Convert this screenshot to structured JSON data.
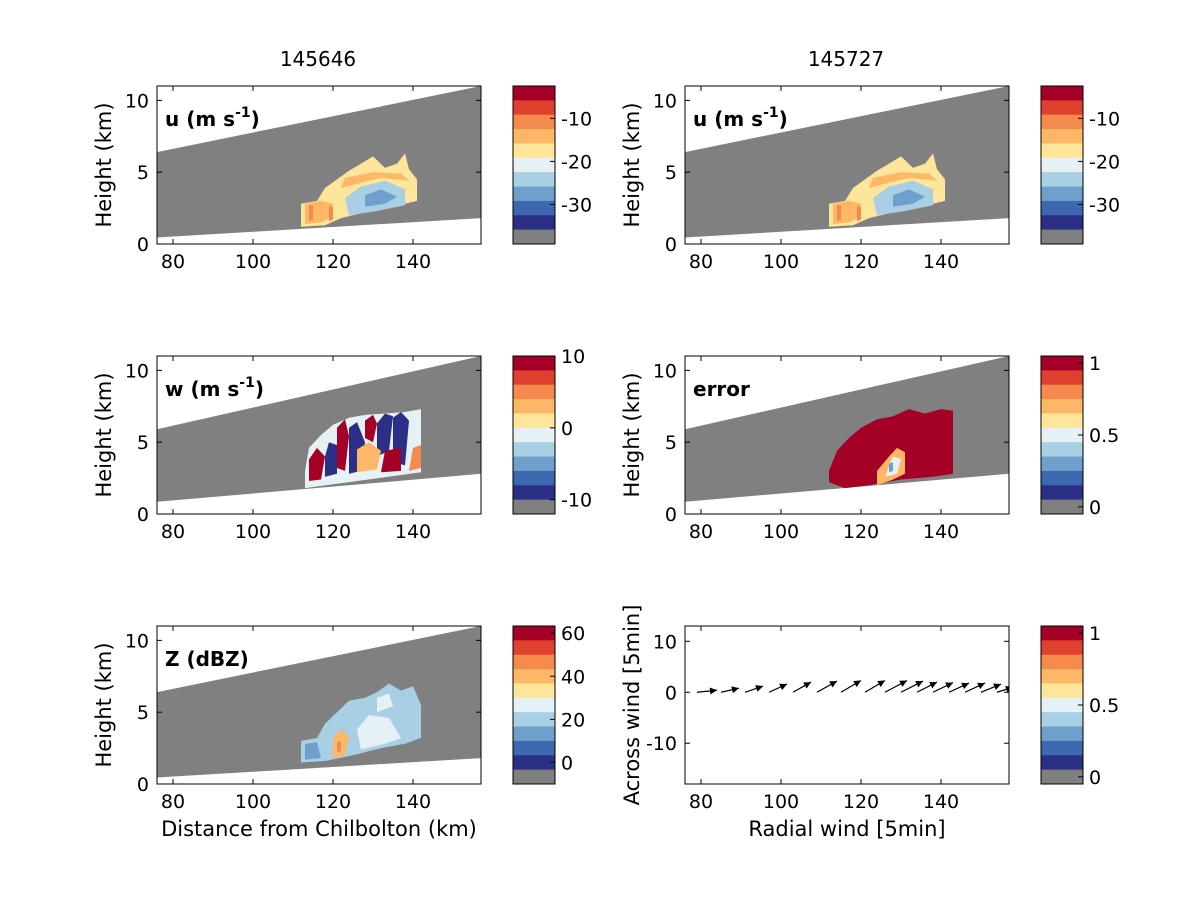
{
  "titles": [
    "145646",
    "145727"
  ],
  "colormap": [
    "#808080",
    "#2b2f86",
    "#3d68ad",
    "#6f9fcb",
    "#a9cfe5",
    "#e6f1f5",
    "#fde69a",
    "#fcb866",
    "#f48a4e",
    "#e0412f",
    "#a50026"
  ],
  "chart_data": [
    {
      "id": "u-145646",
      "type": "heatmap",
      "title": "145646",
      "label": "u (m s^-1)",
      "label_main": "u (m s",
      "label_sup": "-1",
      "label_close": ")",
      "ylabel": "Height (km)",
      "xlabel": "",
      "xlim": [
        76,
        157
      ],
      "ylim": [
        0,
        11
      ],
      "xticks": [
        "80",
        "100",
        "120",
        "140"
      ],
      "yticks": [
        "0",
        "5",
        "10"
      ],
      "beam": {
        "x": [
          76,
          157
        ],
        "top": [
          6.4,
          11.0
        ],
        "bottom": [
          0.45,
          1.8
        ]
      },
      "field": {
        "x_range": [
          112,
          142
        ],
        "y_range": [
          1.2,
          6.5
        ],
        "dominant": "-15 to -5"
      },
      "colorbar": {
        "ticks": [
          "-10",
          "-20",
          "-30"
        ],
        "tick_levels": [
          1.75,
          4.75,
          7.75
        ],
        "n_levels": 11
      }
    },
    {
      "id": "u-145727",
      "type": "heatmap",
      "title": "145727",
      "label": "u (m s^-1)",
      "label_main": "u (m s",
      "label_sup": "-1",
      "label_close": ")",
      "ylabel": "Height (km)",
      "xlabel": "",
      "xlim": [
        76,
        157
      ],
      "ylim": [
        0,
        11
      ],
      "xticks": [
        "80",
        "100",
        "120",
        "140"
      ],
      "yticks": [
        "0",
        "5",
        "10"
      ],
      "beam": {
        "x": [
          76,
          157
        ],
        "top": [
          6.4,
          11.0
        ],
        "bottom": [
          0.45,
          1.8
        ]
      },
      "field": {
        "x_range": [
          112,
          142
        ],
        "y_range": [
          1.2,
          6.5
        ],
        "dominant": "-15 to -5"
      },
      "colorbar": {
        "ticks": [
          "-10",
          "-20",
          "-30"
        ],
        "tick_levels": [
          1.75,
          4.75,
          7.75
        ],
        "n_levels": 11
      }
    },
    {
      "id": "w-145646",
      "type": "heatmap",
      "label": "w (m s^-1)",
      "label_main": "w (m s",
      "label_sup": "-1",
      "label_close": ")",
      "ylabel": "Height (km)",
      "xlabel": "",
      "xlim": [
        76,
        157
      ],
      "ylim": [
        0,
        11
      ],
      "xticks": [
        "80",
        "100",
        "120",
        "140"
      ],
      "yticks": [
        "0",
        "5",
        "10"
      ],
      "beam": {
        "x": [
          76,
          157
        ],
        "top": [
          5.9,
          11.0
        ],
        "bottom": [
          0.85,
          2.8
        ]
      },
      "field": {
        "x_range": [
          113,
          142
        ],
        "y_range": [
          1.8,
          7.3
        ],
        "dominant": "-10 to 10"
      },
      "colorbar": {
        "ticks": [
          "10",
          "0",
          "-10"
        ],
        "tick_levels": [
          -0.5,
          4.5,
          9.5
        ],
        "n_levels": 11
      }
    },
    {
      "id": "error-145727",
      "type": "heatmap",
      "label": "error",
      "label_main": "error",
      "label_sup": "",
      "label_close": "",
      "ylabel": "Height (km)",
      "xlabel": "",
      "xlim": [
        76,
        157
      ],
      "ylim": [
        0,
        11
      ],
      "xticks": [
        "80",
        "100",
        "120",
        "140"
      ],
      "yticks": [
        "0",
        "5",
        "10"
      ],
      "beam": {
        "x": [
          76,
          157
        ],
        "top": [
          5.9,
          11.0
        ],
        "bottom": [
          0.85,
          2.8
        ]
      },
      "field": {
        "x_range": [
          112,
          143
        ],
        "y_range": [
          1.8,
          7.3
        ],
        "dominant": "1"
      },
      "colorbar": {
        "ticks": [
          "1",
          "0.5",
          "0"
        ],
        "tick_levels": [
          0,
          5,
          10
        ],
        "n_levels": 11
      }
    },
    {
      "id": "z-145646",
      "type": "heatmap",
      "label": "Z (dBZ)",
      "label_main": "Z (dBZ)",
      "label_sup": "",
      "label_close": "",
      "ylabel": "Height (km)",
      "xlabel": "Distance from Chilbolton (km)",
      "xlim": [
        76,
        157
      ],
      "ylim": [
        0,
        11
      ],
      "xticks": [
        "80",
        "100",
        "120",
        "140"
      ],
      "yticks": [
        "0",
        "5",
        "10"
      ],
      "beam": {
        "x": [
          76,
          157
        ],
        "top": [
          6.4,
          11.0
        ],
        "bottom": [
          0.45,
          1.8
        ]
      },
      "field": {
        "x_range": [
          112,
          142
        ],
        "y_range": [
          1.5,
          7.0
        ],
        "dominant": "0 to 20"
      },
      "colorbar": {
        "ticks": [
          "60",
          "40",
          "20",
          "0"
        ],
        "tick_levels": [
          0,
          3,
          6,
          9
        ],
        "n_levels": 11
      }
    },
    {
      "id": "quiver-145727",
      "type": "scatter",
      "label": "",
      "label_main": "",
      "label_sup": "",
      "label_close": "",
      "ylabel": "Across wind [5min]",
      "xlabel": "Radial wind [5min]",
      "xlim": [
        76,
        157
      ],
      "ylim": [
        -18,
        13
      ],
      "xticks": [
        "80",
        "100",
        "120",
        "140"
      ],
      "yticks": [
        "-10",
        "0",
        "10"
      ],
      "ytick_values": [
        -10,
        0,
        10
      ],
      "x": [
        79,
        85,
        91,
        97,
        103,
        109,
        115,
        121,
        126,
        130,
        134,
        138,
        142,
        146,
        150,
        154
      ],
      "y": [
        0,
        0,
        0,
        0,
        0,
        0,
        0,
        0,
        0,
        0,
        0,
        0,
        0,
        0,
        0,
        0
      ],
      "dx": [
        5,
        4.5,
        4.5,
        4.5,
        4.5,
        5,
        5,
        5,
        5.5,
        5.5,
        5,
        5,
        5,
        5,
        5,
        4
      ],
      "dy": [
        0.4,
        0.8,
        1.2,
        1.6,
        2.0,
        2.2,
        2.3,
        2.3,
        2.3,
        2.2,
        2.0,
        1.9,
        1.8,
        1.8,
        1.6,
        1.0
      ],
      "colorbar": {
        "ticks": [
          "1",
          "0.5",
          "0"
        ],
        "tick_levels": [
          0,
          5,
          10
        ],
        "n_levels": 11
      }
    }
  ]
}
